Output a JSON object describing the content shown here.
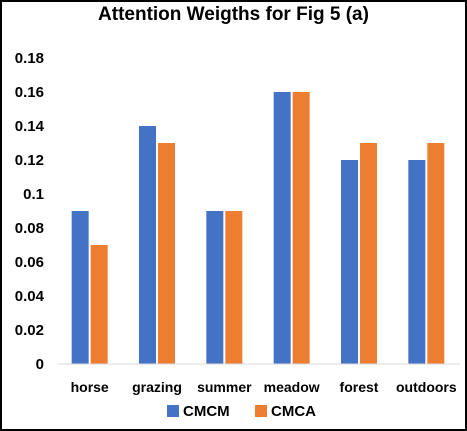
{
  "chart_data": {
    "type": "bar",
    "title": "Attention Weigths for Fig 5 (a)",
    "categories": [
      "horse",
      "grazing",
      "summer",
      "meadow",
      "forest",
      "outdoors"
    ],
    "series": [
      {
        "name": "CMCM",
        "values": [
          0.09,
          0.14,
          0.09,
          0.16,
          0.12,
          0.12
        ],
        "color": "#4472c4"
      },
      {
        "name": "CMCA",
        "values": [
          0.07,
          0.13,
          0.09,
          0.16,
          0.13,
          0.13
        ],
        "color": "#ed7d31"
      }
    ],
    "y_ticks": [
      "0",
      "0.02",
      "0.04",
      "0.06",
      "0.08",
      "0.1",
      "0.12",
      "0.14",
      "0.16",
      "0.18"
    ],
    "ylim": [
      0,
      0.18
    ],
    "grid": false,
    "legend_position": "bottom",
    "xlabel": "",
    "ylabel": ""
  }
}
